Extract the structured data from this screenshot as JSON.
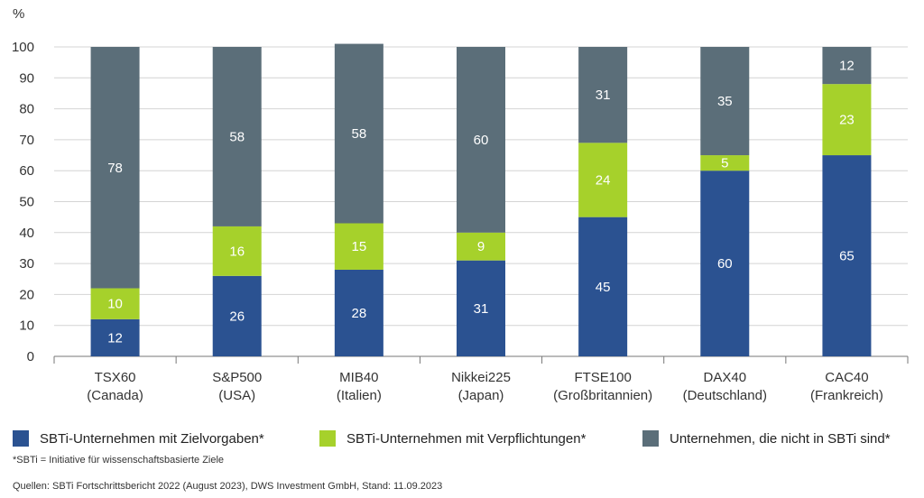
{
  "chart_data": {
    "type": "bar",
    "stacked": true,
    "ylabel": "%",
    "ylim": [
      0,
      100
    ],
    "yticks": [
      0,
      10,
      20,
      30,
      40,
      50,
      60,
      70,
      80,
      90,
      100
    ],
    "grid": true,
    "categories": [
      [
        "TSX60",
        "(Canada)"
      ],
      [
        "S&P500",
        "(USA)"
      ],
      [
        "MIB40",
        "(Italien)"
      ],
      [
        "Nikkei225",
        "(Japan)"
      ],
      [
        "FTSE100",
        "(Großbritannien)"
      ],
      [
        "DAX40",
        "(Deutschland)"
      ],
      [
        "CAC40",
        "(Frankreich)"
      ]
    ],
    "series": [
      {
        "name": "SBTi-Unternehmen mit Zielvorgaben*",
        "color": "#2b5291",
        "values": [
          12,
          26,
          28,
          31,
          45,
          60,
          65
        ]
      },
      {
        "name": "SBTi-Unternehmen mit Verpflichtungen*",
        "color": "#a6d12b",
        "values": [
          10,
          16,
          15,
          9,
          24,
          5,
          23
        ]
      },
      {
        "name": "Unternehmen, die nicht in SBTi sind*",
        "color": "#5b6e79",
        "values": [
          78,
          58,
          58,
          60,
          31,
          35,
          12
        ]
      }
    ],
    "legend_position": "bottom"
  },
  "footnotes": {
    "definition": "*SBTi = Initiative für wissenschaftsbasierte Ziele",
    "sources": "Quellen: SBTi Fortschrittsbericht 2022 (August 2023), DWS Investment GmbH, Stand: 11.09.2023"
  }
}
